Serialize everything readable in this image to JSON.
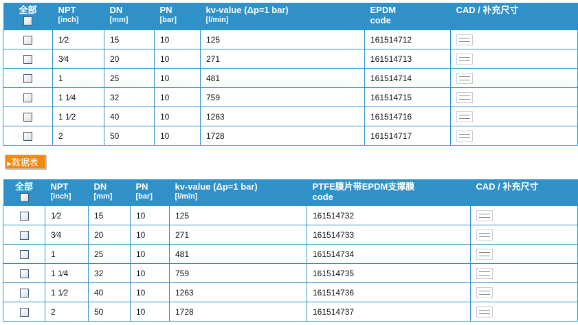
{
  "table1": {
    "headers": {
      "all": "全部",
      "npt": "NPT",
      "npt_unit": "[inch]",
      "dn": "DN",
      "dn_unit": "[mm]",
      "pn": "PN",
      "pn_unit": "[bar]",
      "kv": "kv-value (Δp=1 bar)",
      "kv_unit": "[l/min]",
      "code": "EPDM",
      "code2": "code",
      "cad": "CAD / 补充尺寸"
    },
    "rows": [
      {
        "npt": "1⁄2",
        "dn": "15",
        "pn": "10",
        "kv": "125",
        "code": "161514712"
      },
      {
        "npt": "3⁄4",
        "dn": "20",
        "pn": "10",
        "kv": "271",
        "code": "161514713"
      },
      {
        "npt": "1",
        "dn": "25",
        "pn": "10",
        "kv": "481",
        "code": "161514714"
      },
      {
        "npt": "1 1⁄4",
        "dn": "32",
        "pn": "10",
        "kv": "759",
        "code": "161514715"
      },
      {
        "npt": "1 1⁄2",
        "dn": "40",
        "pn": "10",
        "kv": "1263",
        "code": "161514716"
      },
      {
        "npt": "2",
        "dn": "50",
        "pn": "10",
        "kv": "1728",
        "code": "161514717"
      }
    ]
  },
  "datasheet_button": "数据表",
  "table2": {
    "headers": {
      "all": "全部",
      "npt": "NPT",
      "npt_unit": "[inch]",
      "dn": "DN",
      "dn_unit": "[mm]",
      "pn": "PN",
      "pn_unit": "[bar]",
      "kv": "kv-value (Δp=1 bar)",
      "kv_unit": "[l/min]",
      "code": "PTFE膜片带EPDM支撑膜",
      "code2": "code",
      "cad": "CAD / 补充尺寸"
    },
    "rows": [
      {
        "npt": "1⁄2",
        "dn": "15",
        "pn": "10",
        "kv": "125",
        "code": "161514732"
      },
      {
        "npt": "3⁄4",
        "dn": "20",
        "pn": "10",
        "kv": "271",
        "code": "161514733"
      },
      {
        "npt": "1",
        "dn": "25",
        "pn": "10",
        "kv": "481",
        "code": "161514734"
      },
      {
        "npt": "1 1⁄4",
        "dn": "32",
        "pn": "10",
        "kv": "759",
        "code": "161514735"
      },
      {
        "npt": "1 1⁄2",
        "dn": "40",
        "pn": "10",
        "kv": "1263",
        "code": "161514736"
      },
      {
        "npt": "2",
        "dn": "50",
        "pn": "10",
        "kv": "1728",
        "code": "161514737"
      }
    ]
  },
  "colors": {
    "header": "#2f91c8",
    "button": "#f08a10"
  }
}
